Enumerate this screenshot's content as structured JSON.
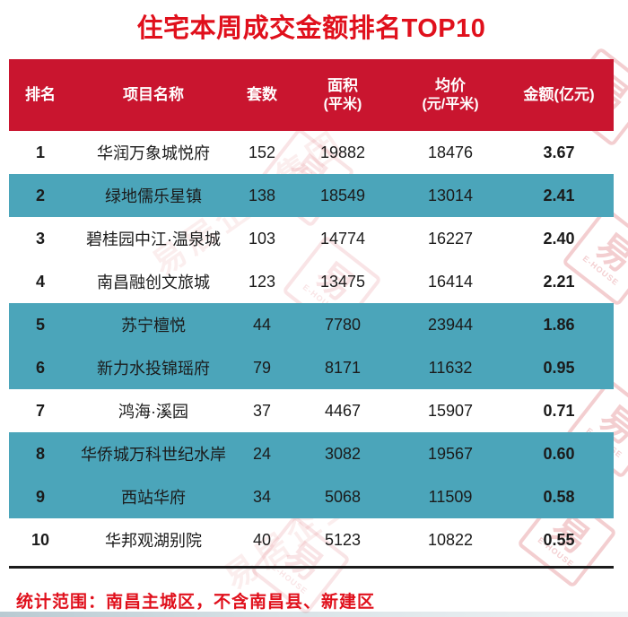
{
  "title": "住宅本周成交金额排名TOP10",
  "footnote": "统计范围：南昌主城区，不含南昌县、新建区",
  "colors": {
    "header_red": "#c9152f",
    "title_red": "#e0101c",
    "highlight_teal": "#4ba5ba"
  },
  "watermark": {
    "stamp_glyph": "易",
    "stamp_brand": "E-HOUSE",
    "diagonal_text": "易居企业集团"
  },
  "table": {
    "columns": [
      {
        "label": "排名",
        "sub": ""
      },
      {
        "label": "项目名称",
        "sub": ""
      },
      {
        "label": "套数",
        "sub": ""
      },
      {
        "label": "面积",
        "sub": "(平米)"
      },
      {
        "label": "均价",
        "sub": "(元/平米)"
      },
      {
        "label": "金额(亿元)",
        "sub": ""
      }
    ],
    "rows": [
      {
        "rank": "1",
        "name": "华润万象城悦府",
        "units": "152",
        "area": "19882",
        "price": "18476",
        "amount": "3.67",
        "highlight": false
      },
      {
        "rank": "2",
        "name": "绿地儒乐星镇",
        "units": "138",
        "area": "18549",
        "price": "13014",
        "amount": "2.41",
        "highlight": true
      },
      {
        "rank": "3",
        "name": "碧桂园中江·温泉城",
        "units": "103",
        "area": "14774",
        "price": "16227",
        "amount": "2.40",
        "highlight": false
      },
      {
        "rank": "4",
        "name": "南昌融创文旅城",
        "units": "123",
        "area": "13475",
        "price": "16414",
        "amount": "2.21",
        "highlight": false
      },
      {
        "rank": "5",
        "name": "苏宁檀悦",
        "units": "44",
        "area": "7780",
        "price": "23944",
        "amount": "1.86",
        "highlight": true
      },
      {
        "rank": "6",
        "name": "新力水投锦瑶府",
        "units": "79",
        "area": "8171",
        "price": "11632",
        "amount": "0.95",
        "highlight": true
      },
      {
        "rank": "7",
        "name": "鸿海·溪园",
        "units": "37",
        "area": "4467",
        "price": "15907",
        "amount": "0.71",
        "highlight": false
      },
      {
        "rank": "8",
        "name": "华侨城万科世纪水岸",
        "units": "24",
        "area": "3082",
        "price": "19567",
        "amount": "0.60",
        "highlight": true
      },
      {
        "rank": "9",
        "name": "西站华府",
        "units": "34",
        "area": "5068",
        "price": "11509",
        "amount": "0.58",
        "highlight": true
      },
      {
        "rank": "10",
        "name": "华邦观湖别院",
        "units": "40",
        "area": "5123",
        "price": "10822",
        "amount": "0.55",
        "highlight": false
      }
    ]
  }
}
